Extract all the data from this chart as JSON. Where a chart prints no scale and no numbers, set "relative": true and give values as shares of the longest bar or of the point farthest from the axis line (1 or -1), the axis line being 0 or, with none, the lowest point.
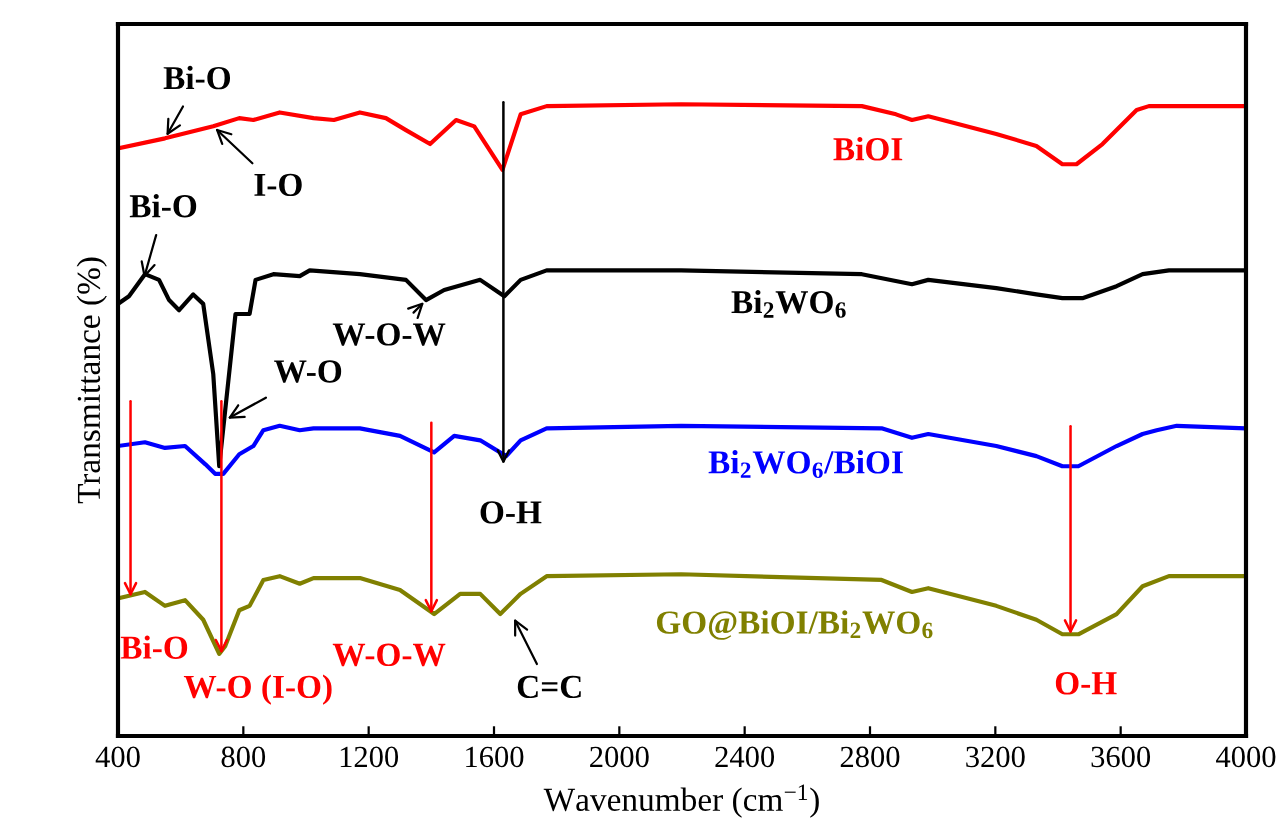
{
  "chart_data": {
    "type": "line",
    "relative": true,
    "xlabel": "Wavenumber (cm$^{−1}$)",
    "ylabel": "Transmittance (%)",
    "xlim": [
      400,
      4000
    ],
    "xticks": [
      400,
      800,
      1200,
      1600,
      2000,
      2400,
      2800,
      3200,
      3600,
      4000
    ],
    "tick_labels": "x",
    "grid": false,
    "legend": false,
    "marker": "none",
    "line_style": "solid",
    "series": [
      {
        "name": "BiOI",
        "color": "#ff0000",
        "x": [
          400,
          550,
          704,
          787,
          832,
          916,
          1024,
          1089,
          1172,
          1255,
          1319,
          1396,
          1479,
          1537,
          1627,
          1685,
          1768,
          2197,
          2774,
          2883,
          2934,
          2986,
          3203,
          3331,
          3414,
          3459,
          3542,
          3651,
          3690,
          4000
        ],
        "values": [
          0.93,
          0.946,
          0.965,
          0.978,
          0.975,
          0.987,
          0.978,
          0.975,
          0.987,
          0.978,
          0.959,
          0.937,
          0.975,
          0.965,
          0.896,
          0.984,
          0.997,
          1.0,
          0.997,
          0.984,
          0.975,
          0.981,
          0.953,
          0.934,
          0.905,
          0.905,
          0.937,
          0.991,
          0.997,
          0.997
        ]
      },
      {
        "name": "Bi$_{2}$WO$_{6}$",
        "color": "#000000",
        "x": [
          400,
          435,
          486,
          531,
          563,
          595,
          640,
          672,
          704,
          723,
          775,
          800,
          820,
          839,
          896,
          980,
          1012,
          1172,
          1319,
          1383,
          1441,
          1556,
          1633,
          1685,
          1768,
          2197,
          2774,
          2934,
          2986,
          3203,
          3331,
          3414,
          3478,
          3587,
          3670,
          3754,
          4000
        ],
        "values": [
          0.684,
          0.696,
          0.731,
          0.722,
          0.69,
          0.674,
          0.699,
          0.684,
          0.573,
          0.427,
          0.668,
          0.668,
          0.668,
          0.722,
          0.731,
          0.728,
          0.737,
          0.731,
          0.722,
          0.69,
          0.706,
          0.722,
          0.696,
          0.722,
          0.737,
          0.737,
          0.731,
          0.715,
          0.722,
          0.709,
          0.699,
          0.693,
          0.693,
          0.712,
          0.731,
          0.737,
          0.737
        ]
      },
      {
        "name": "Bi$_{2}$WO$_{6}$/BiOI",
        "color": "#0000ff",
        "x": [
          400,
          486,
          550,
          614,
          679,
          710,
          736,
          787,
          832,
          864,
          916,
          980,
          1024,
          1172,
          1300,
          1409,
          1473,
          1556,
          1639,
          1685,
          1768,
          2197,
          2837,
          2934,
          2986,
          3203,
          3331,
          3414,
          3465,
          3587,
          3670,
          3715,
          3779,
          4000
        ],
        "values": [
          0.459,
          0.465,
          0.456,
          0.459,
          0.43,
          0.415,
          0.415,
          0.446,
          0.459,
          0.484,
          0.491,
          0.484,
          0.487,
          0.487,
          0.475,
          0.449,
          0.475,
          0.468,
          0.443,
          0.468,
          0.487,
          0.491,
          0.487,
          0.472,
          0.478,
          0.459,
          0.443,
          0.427,
          0.427,
          0.459,
          0.478,
          0.484,
          0.491,
          0.487
        ]
      },
      {
        "name": "GO@BiOI/Bi$_{2}$WO$_{6}$",
        "color": "#808000",
        "x": [
          400,
          486,
          550,
          614,
          672,
          723,
          742,
          787,
          820,
          864,
          916,
          980,
          1024,
          1172,
          1300,
          1409,
          1492,
          1556,
          1620,
          1685,
          1768,
          2197,
          2837,
          2934,
          2986,
          3203,
          3331,
          3414,
          3465,
          3587,
          3670,
          3754,
          4000
        ],
        "values": [
          0.218,
          0.228,
          0.206,
          0.215,
          0.184,
          0.13,
          0.142,
          0.199,
          0.206,
          0.247,
          0.253,
          0.241,
          0.25,
          0.25,
          0.231,
          0.193,
          0.225,
          0.225,
          0.193,
          0.225,
          0.253,
          0.256,
          0.247,
          0.228,
          0.234,
          0.206,
          0.184,
          0.161,
          0.161,
          0.193,
          0.237,
          0.253,
          0.253
        ]
      }
    ],
    "annotations": [
      {
        "text": "Bi-O",
        "x": 550,
        "y": 0.946
      },
      {
        "text": "I-O",
        "x": 704,
        "y": 0.965
      },
      {
        "text": "Bi-O",
        "x": 480,
        "y": 0.72
      },
      {
        "text": "W-O-W",
        "x": 1383,
        "y": 0.69
      },
      {
        "text": "W-O",
        "x": 742,
        "y": 0.5
      },
      {
        "text": "O-H",
        "x": 1630,
        "y": 0.43
      },
      {
        "text": "Bi-O",
        "x": 440,
        "y": 0.22
      },
      {
        "text": "W-O (I-O)",
        "x": 730,
        "y": 0.13
      },
      {
        "text": "W-O-W",
        "x": 1400,
        "y": 0.193
      },
      {
        "text": "C=C",
        "x": 1660,
        "y": 0.19
      },
      {
        "text": "O-H",
        "x": 3440,
        "y": 0.161
      }
    ]
  }
}
